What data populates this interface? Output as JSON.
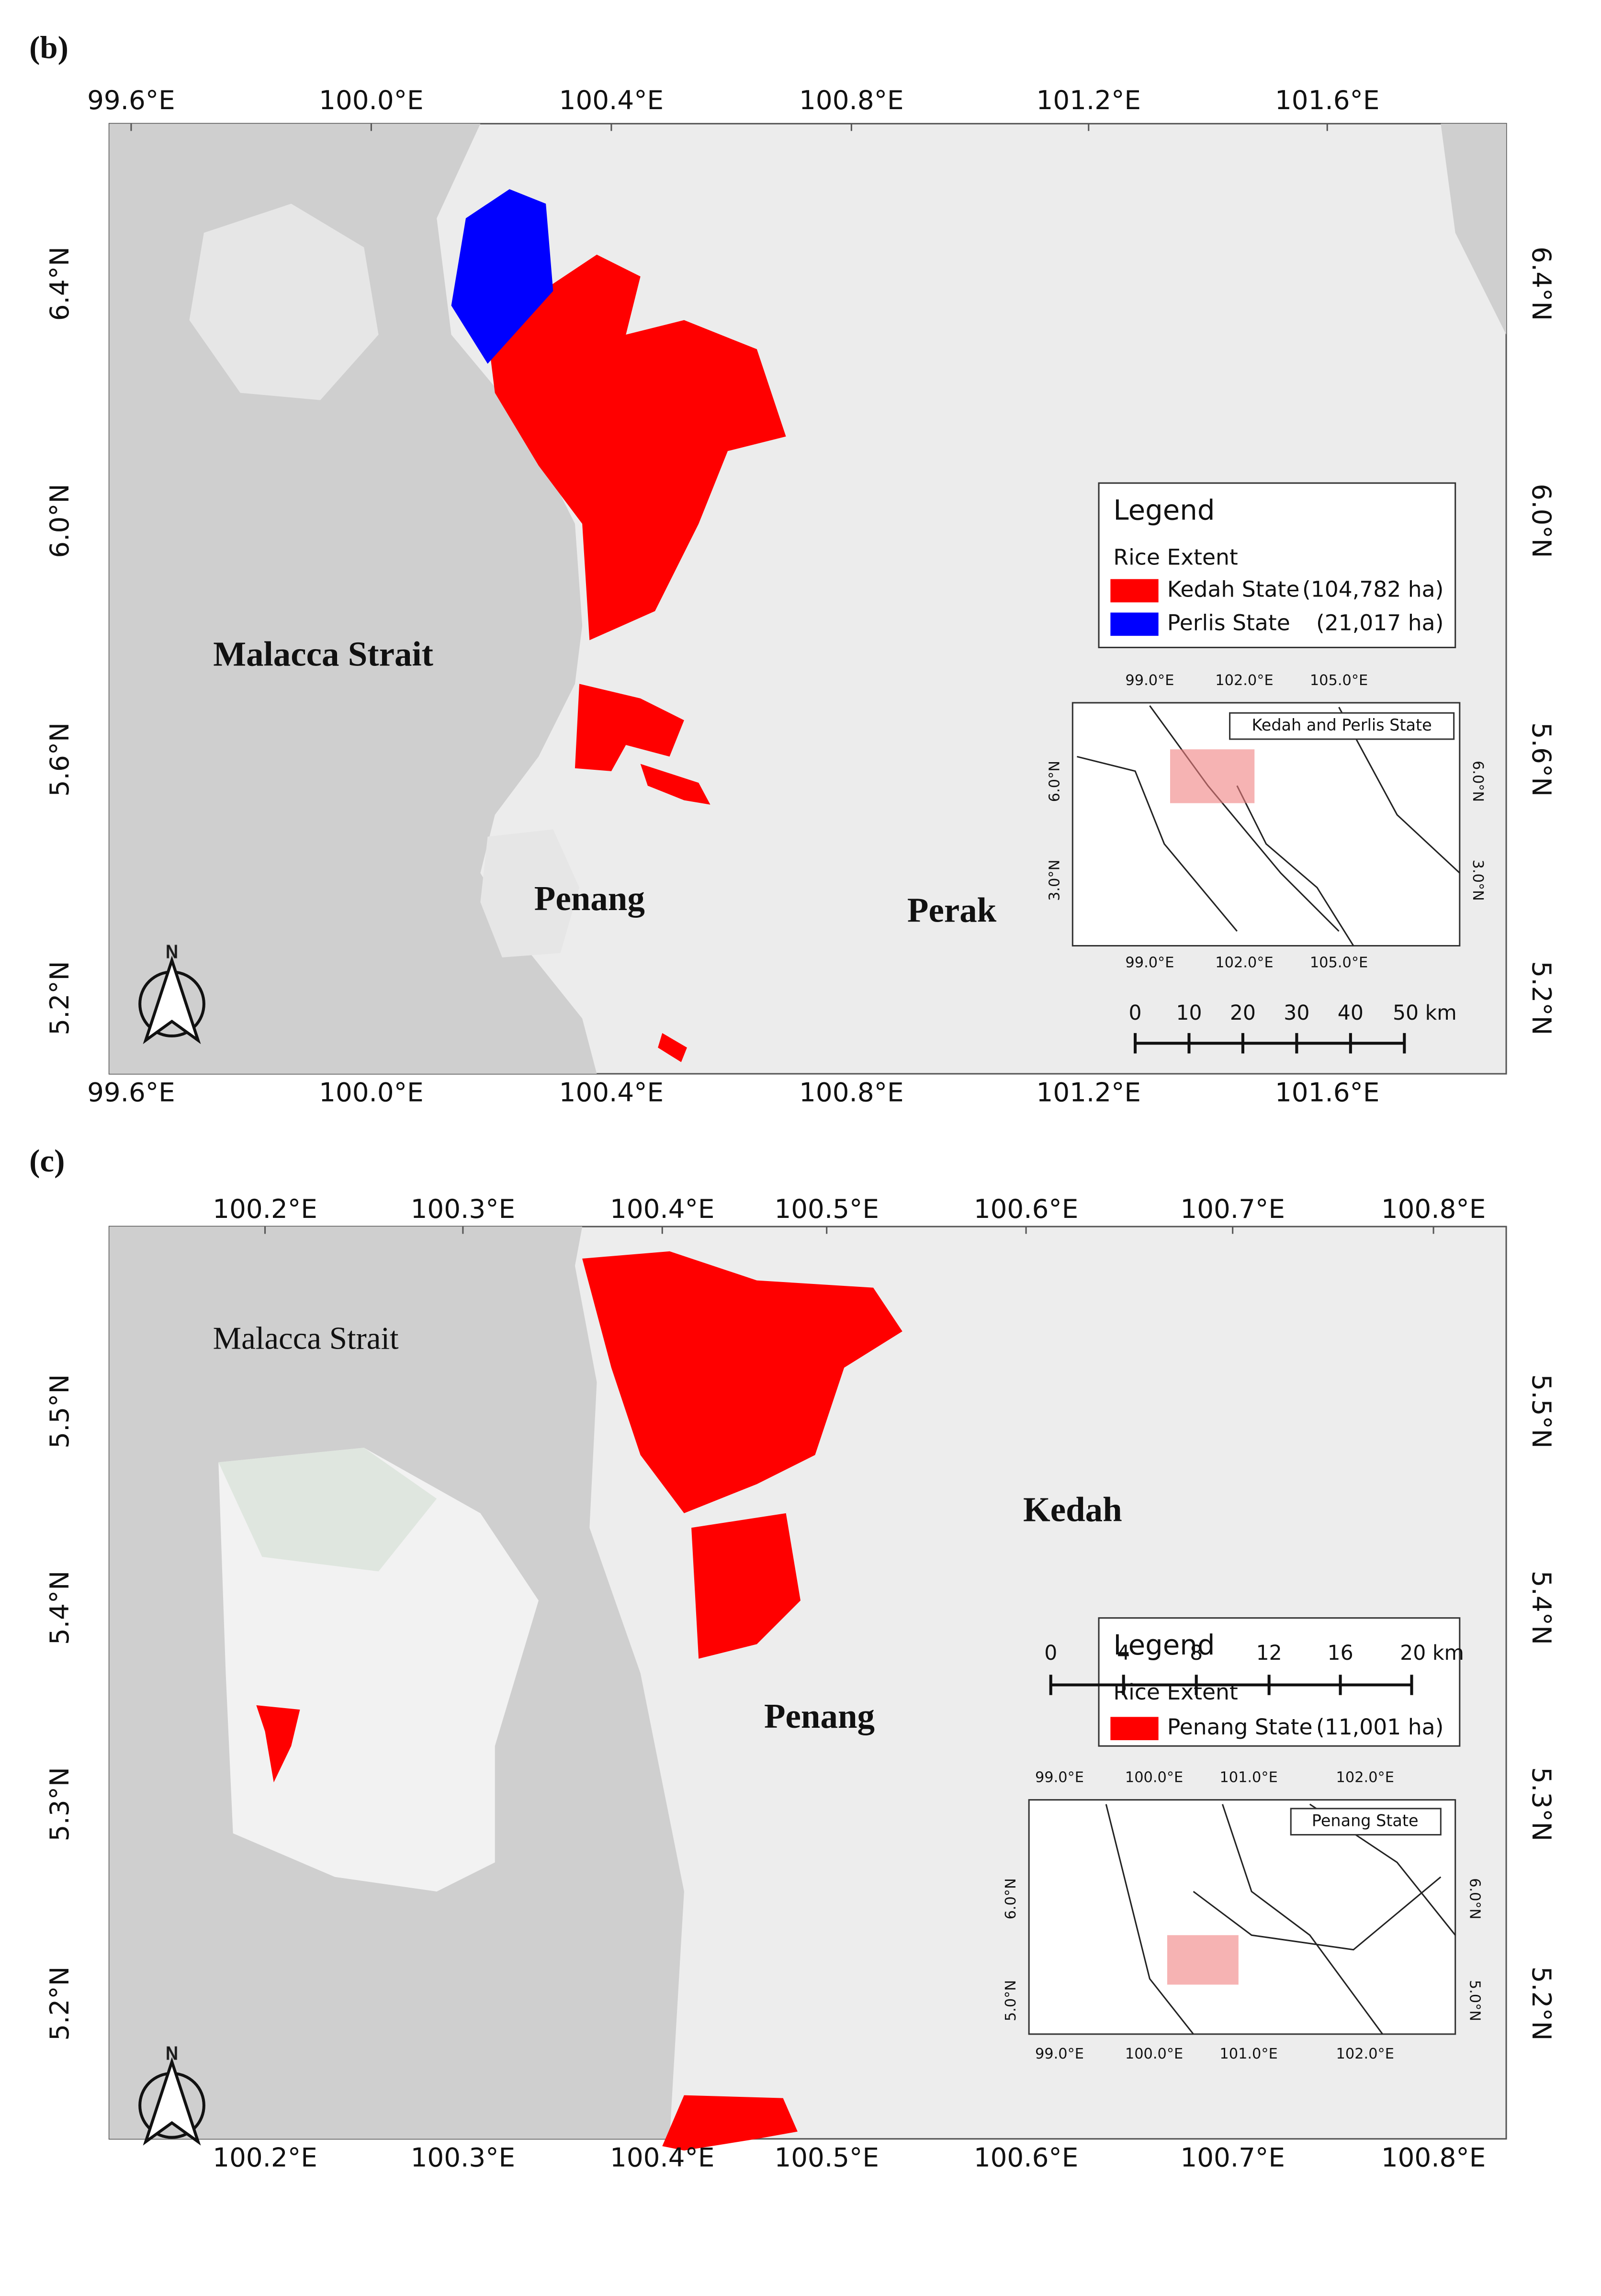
{
  "panels": [
    {
      "label": "(b)",
      "x_ticks": [
        "99.6°E",
        "100.0°E",
        "100.4°E",
        "100.8°E",
        "101.2°E",
        "101.6°E"
      ],
      "y_ticks": [
        "6.4°N",
        "6.0°N",
        "5.6°N",
        "5.2°N"
      ],
      "places": [
        "Malacca Strait",
        "Penang",
        "Perak"
      ],
      "legend": {
        "title": "Legend",
        "subtitle": "Rice Extent",
        "items": [
          {
            "name": "Kedah State",
            "area": "(104,782 ha)",
            "color": "#ff0000"
          },
          {
            "name": "Perlis State",
            "area": "(21,017 ha)",
            "color": "#0000ff"
          }
        ]
      },
      "inset": {
        "title": "Kedah and Perlis State",
        "x_ticks": [
          "99.0°E",
          "102.0°E",
          "105.0°E"
        ],
        "y_ticks": [
          "6.0°N",
          "3.0°N"
        ]
      },
      "scale_bar": [
        "0",
        "10",
        "20",
        "30",
        "40",
        "50 km"
      ],
      "north": "N"
    },
    {
      "label": "(c)",
      "x_ticks": [
        "100.2°E",
        "100.3°E",
        "100.4°E",
        "100.5°E",
        "100.6°E",
        "100.7°E",
        "100.8°E"
      ],
      "y_ticks": [
        "5.5°N",
        "5.4°N",
        "5.3°N",
        "5.2°N"
      ],
      "places": [
        "Malacca Strait",
        "Kedah",
        "Penang"
      ],
      "legend": {
        "title": "Legend",
        "subtitle": "Rice Extent",
        "items": [
          {
            "name": "Penang State",
            "area": "(11,001 ha)",
            "color": "#ff0000"
          }
        ]
      },
      "inset": {
        "title": "Penang State",
        "x_ticks": [
          "99.0°E",
          "100.0°E",
          "101.0°E",
          "102.0°E"
        ],
        "y_ticks": [
          "6.0°N",
          "5.0°N"
        ]
      },
      "scale_bar": [
        "0",
        "4",
        "8",
        "12",
        "16",
        "20 km"
      ],
      "north": "N"
    }
  ]
}
